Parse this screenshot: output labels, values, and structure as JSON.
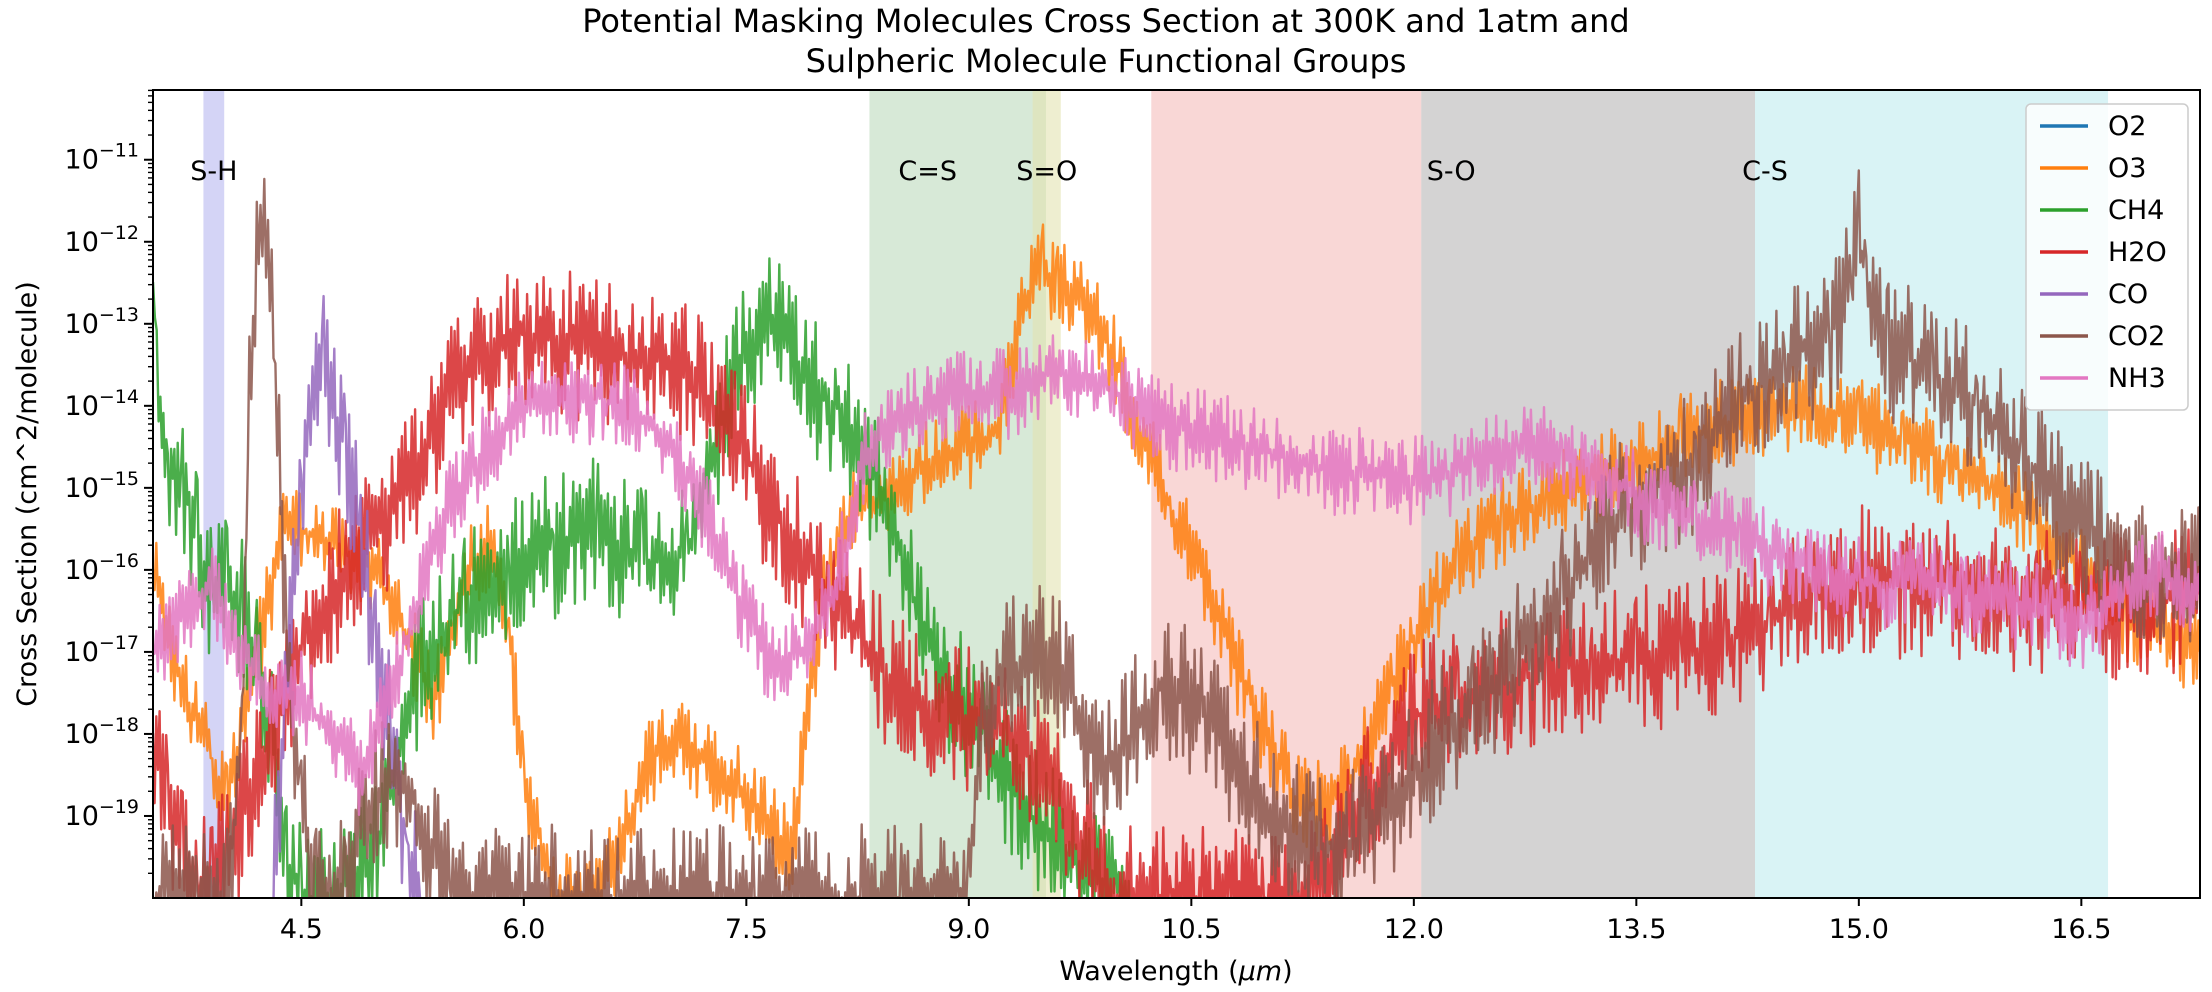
{
  "chart_data": {
    "type": "line",
    "title_lines": [
      "Potential Masking Molecules Cross Section at 300K and 1atm and",
      "Sulpheric Molecule Functional Groups"
    ],
    "xlabel_prefix": "Wavelength (",
    "xlabel_unit": "μm",
    "xlabel_suffix": ")",
    "ylabel": "Cross Section (cm^2/molecule)",
    "xlim": [
      3.5,
      17.3
    ],
    "ylim_log10": [
      -20.0,
      -10.15
    ],
    "y_scale": "log",
    "x_ticks": [
      4.5,
      6.0,
      7.5,
      9.0,
      10.5,
      12.0,
      13.5,
      15.0,
      16.5
    ],
    "x_tick_labels": [
      "4.5",
      "6.0",
      "7.5",
      "9.0",
      "10.5",
      "12.0",
      "13.5",
      "15.0",
      "16.5"
    ],
    "y_ticks": [
      {
        "base": "10",
        "exp": "−11",
        "log10": -11
      },
      {
        "base": "10",
        "exp": "−12",
        "log10": -12
      },
      {
        "base": "10",
        "exp": "−13",
        "log10": -13
      },
      {
        "base": "10",
        "exp": "−14",
        "log10": -14
      },
      {
        "base": "10",
        "exp": "−15",
        "log10": -15
      },
      {
        "base": "10",
        "exp": "−16",
        "log10": -16
      },
      {
        "base": "10",
        "exp": "−17",
        "log10": -17
      },
      {
        "base": "10",
        "exp": "−18",
        "log10": -18
      },
      {
        "base": "10",
        "exp": "−19",
        "log10": -19
      }
    ],
    "grid": false,
    "legend_position": "top-right",
    "bands": [
      {
        "label": "S-H",
        "start": 3.84,
        "end": 3.98,
        "color": "#aaaaee",
        "opacity": 0.5
      },
      {
        "label": "C=S",
        "start": 8.33,
        "end": 9.52,
        "color": "#b0d4b0",
        "opacity": 0.5
      },
      {
        "label": "S=O",
        "start": 9.43,
        "end": 9.62,
        "color": "#e3e3b0",
        "opacity": 0.6
      },
      {
        "label": "",
        "start": 10.23,
        "end": 12.05,
        "color": "#f4b6b4",
        "opacity": 0.55
      },
      {
        "label": "S-O",
        "start": 12.05,
        "end": 14.3,
        "color": "#b7b5b6",
        "opacity": 0.6
      },
      {
        "label": "C-S",
        "start": 14.3,
        "end": 16.68,
        "color": "#b3e8ec",
        "opacity": 0.5
      }
    ],
    "series": [
      {
        "name": "O2",
        "color": "#1f77b4",
        "x": [],
        "y_log10": []
      },
      {
        "name": "O3",
        "color": "#ff7f0e",
        "x": [
          3.5,
          3.7,
          3.9,
          4.0,
          4.2,
          4.4,
          4.6,
          4.8,
          5.0,
          5.2,
          5.4,
          5.6,
          5.8,
          5.9,
          6.0,
          6.2,
          6.4,
          6.6,
          6.8,
          7.0,
          7.2,
          7.4,
          7.6,
          7.8,
          8.0,
          8.2,
          8.4,
          8.6,
          8.8,
          9.0,
          9.2,
          9.4,
          9.5,
          9.6,
          9.8,
          10.0,
          10.2,
          10.4,
          10.6,
          10.8,
          11.0,
          11.2,
          11.4,
          11.6,
          11.8,
          12.0,
          12.3,
          12.6,
          12.9,
          13.2,
          13.5,
          13.8,
          14.1,
          14.4,
          14.7,
          15.0,
          15.3,
          15.6,
          15.9,
          16.2,
          16.5,
          16.8,
          17.0,
          17.3
        ],
        "y_log10": [
          -16.0,
          -17.5,
          -18.3,
          -18.8,
          -17.0,
          -15.4,
          -15.6,
          -15.8,
          -16.0,
          -16.8,
          -17.6,
          -16.0,
          -15.7,
          -16.8,
          -18.5,
          -20.0,
          -20.0,
          -19.6,
          -18.5,
          -18.0,
          -18.3,
          -18.6,
          -19.0,
          -19.5,
          -16.5,
          -15.3,
          -15.2,
          -14.8,
          -14.6,
          -14.5,
          -14.3,
          -12.6,
          -12.3,
          -12.5,
          -12.8,
          -13.5,
          -14.5,
          -15.4,
          -16.2,
          -17.2,
          -18.0,
          -18.8,
          -18.9,
          -18.5,
          -17.6,
          -16.8,
          -15.9,
          -15.4,
          -15.2,
          -14.9,
          -14.7,
          -14.4,
          -14.2,
          -14.1,
          -14.0,
          -14.2,
          -14.4,
          -14.7,
          -15.0,
          -15.4,
          -16.0,
          -16.6,
          -16.7,
          -17.0
        ]
      },
      {
        "name": "CH4",
        "color": "#2ca02c",
        "x": [
          3.5,
          3.55,
          3.6,
          3.7,
          3.8,
          3.9,
          4.0,
          4.1,
          4.2,
          4.3,
          4.4,
          4.5,
          4.7,
          5.0,
          5.3,
          5.6,
          5.9,
          6.2,
          6.5,
          6.8,
          7.1,
          7.3,
          7.5,
          7.7,
          7.9,
          8.1,
          8.3,
          8.5,
          8.7,
          8.9,
          9.1,
          9.3,
          9.5,
          9.7,
          9.9,
          10.1
        ],
        "y_log10": [
          -12.5,
          -14.0,
          -14.6,
          -15.0,
          -15.6,
          -16.4,
          -16.2,
          -16.5,
          -17.2,
          -18.0,
          -19.5,
          -20.0,
          -20.0,
          -19.5,
          -17.2,
          -16.4,
          -16.0,
          -15.7,
          -15.5,
          -15.9,
          -15.8,
          -14.4,
          -13.2,
          -13.0,
          -13.7,
          -14.0,
          -14.6,
          -15.5,
          -16.8,
          -17.5,
          -18.0,
          -18.7,
          -19.2,
          -19.5,
          -19.8,
          -20.0
        ]
      },
      {
        "name": "H2O",
        "color": "#d62728",
        "x": [
          3.5,
          3.6,
          3.7,
          3.8,
          3.9,
          4.0,
          4.2,
          4.4,
          4.6,
          4.8,
          5.0,
          5.2,
          5.4,
          5.6,
          5.8,
          6.0,
          6.2,
          6.4,
          6.6,
          6.8,
          7.0,
          7.2,
          7.4,
          7.6,
          7.8,
          8.0,
          8.2,
          8.4,
          8.6,
          8.8,
          9.0,
          9.2,
          9.4,
          9.6,
          9.8,
          10.0,
          10.2,
          10.4,
          10.6,
          10.8,
          11.0,
          11.2,
          11.4,
          11.6,
          11.8,
          12.0,
          12.3,
          12.6,
          12.9,
          13.2,
          13.5,
          13.8,
          14.1,
          14.4,
          14.7,
          15.0,
          15.3,
          15.6,
          15.9,
          16.2,
          16.5,
          16.8,
          17.0,
          17.3
        ],
        "y_log10": [
          -18.0,
          -19.0,
          -19.6,
          -20.0,
          -19.8,
          -19.5,
          -18.5,
          -17.5,
          -16.5,
          -16.0,
          -15.6,
          -15.0,
          -14.2,
          -13.6,
          -13.3,
          -13.1,
          -13.2,
          -13.3,
          -13.4,
          -13.3,
          -13.5,
          -13.8,
          -14.3,
          -15.0,
          -15.6,
          -16.2,
          -16.6,
          -17.2,
          -17.6,
          -17.8,
          -17.8,
          -18.0,
          -18.2,
          -18.8,
          -19.4,
          -20.0,
          -20.0,
          -20.0,
          -20.0,
          -20.0,
          -20.0,
          -20.0,
          -19.8,
          -19.0,
          -18.4,
          -17.8,
          -17.5,
          -17.4,
          -17.2,
          -17.1,
          -17.1,
          -17.0,
          -16.9,
          -16.6,
          -16.3,
          -16.1,
          -16.2,
          -16.2,
          -16.3,
          -16.4,
          -16.3,
          -16.5,
          -16.4,
          -16.3
        ]
      },
      {
        "name": "CO",
        "color": "#9467bd",
        "x": [
          4.3,
          4.4,
          4.5,
          4.55,
          4.6,
          4.65,
          4.7,
          4.8,
          4.9,
          5.0,
          5.1,
          5.2,
          5.3
        ],
        "y_log10": [
          -20.0,
          -17.5,
          -15.0,
          -14.2,
          -13.7,
          -13.5,
          -14.0,
          -14.5,
          -15.6,
          -16.8,
          -18.0,
          -19.2,
          -20.0
        ]
      },
      {
        "name": "CO2",
        "color": "#8c564b",
        "x": [
          3.5,
          3.8,
          4.0,
          4.1,
          4.15,
          4.2,
          4.25,
          4.3,
          4.35,
          4.4,
          4.5,
          4.6,
          4.7,
          4.8,
          5.0,
          5.2,
          5.4,
          5.5,
          9.0,
          9.1,
          9.3,
          9.5,
          9.7,
          9.9,
          10.1,
          10.3,
          10.5,
          10.7,
          10.9,
          11.1,
          11.3,
          11.5,
          11.7,
          11.9,
          12.1,
          12.4,
          12.7,
          13.0,
          13.3,
          13.6,
          13.9,
          14.2,
          14.5,
          14.8,
          14.95,
          15.0,
          15.05,
          15.2,
          15.5,
          15.8,
          16.1,
          16.3,
          16.5,
          16.8,
          17.0,
          17.3
        ],
        "y_log10": [
          -20.0,
          -20.0,
          -20.0,
          -18.0,
          -14.0,
          -12.2,
          -11.9,
          -12.5,
          -14.5,
          -17.0,
          -18.8,
          -20.0,
          -20.0,
          -19.6,
          -18.8,
          -18.5,
          -19.4,
          -20.0,
          -20.0,
          -17.6,
          -17.2,
          -17.0,
          -17.5,
          -18.4,
          -18.0,
          -17.4,
          -17.6,
          -18.0,
          -18.6,
          -19.1,
          -19.3,
          -19.4,
          -19.2,
          -18.8,
          -18.2,
          -17.7,
          -17.0,
          -16.3,
          -15.5,
          -15.0,
          -14.7,
          -14.0,
          -13.4,
          -13.2,
          -12.6,
          -11.8,
          -12.6,
          -13.3,
          -13.6,
          -14.0,
          -14.6,
          -15.1,
          -15.5,
          -16.0,
          -16.2,
          -16.0
        ]
      },
      {
        "name": "NH3",
        "color": "#e377c2",
        "x": [
          3.5,
          3.7,
          3.9,
          4.1,
          4.3,
          4.5,
          4.7,
          4.9,
          5.1,
          5.3,
          5.5,
          5.7,
          5.9,
          6.1,
          6.3,
          6.5,
          6.7,
          6.9,
          7.1,
          7.3,
          7.5,
          7.7,
          7.9,
          8.1,
          8.3,
          8.5,
          8.7,
          8.9,
          9.1,
          9.3,
          9.5,
          9.7,
          9.9,
          10.1,
          10.3,
          10.5,
          10.7,
          10.9,
          11.1,
          11.3,
          11.5,
          11.7,
          11.9,
          12.1,
          12.4,
          12.7,
          13.0,
          13.3,
          13.6,
          13.9,
          14.2,
          14.5,
          14.8,
          15.1,
          15.4,
          15.7,
          16.0,
          16.3,
          16.5,
          16.8,
          17.0,
          17.3
        ],
        "y_log10": [
          -17.0,
          -16.5,
          -16.2,
          -17.0,
          -17.5,
          -17.5,
          -18.0,
          -18.5,
          -17.5,
          -16.3,
          -15.2,
          -14.6,
          -14.2,
          -14.0,
          -14.0,
          -13.9,
          -14.0,
          -14.3,
          -14.8,
          -15.6,
          -16.6,
          -17.2,
          -17.0,
          -16.2,
          -14.6,
          -14.2,
          -14.0,
          -13.9,
          -13.8,
          -13.9,
          -13.6,
          -13.6,
          -13.7,
          -14.0,
          -14.2,
          -14.3,
          -14.4,
          -14.5,
          -14.6,
          -14.7,
          -14.8,
          -14.8,
          -14.9,
          -14.9,
          -14.7,
          -14.5,
          -14.6,
          -14.9,
          -15.2,
          -15.4,
          -15.6,
          -15.9,
          -16.0,
          -16.2,
          -16.1,
          -16.3,
          -16.4,
          -16.5,
          -16.7,
          -16.3,
          -16.0,
          -16.3
        ]
      }
    ]
  }
}
